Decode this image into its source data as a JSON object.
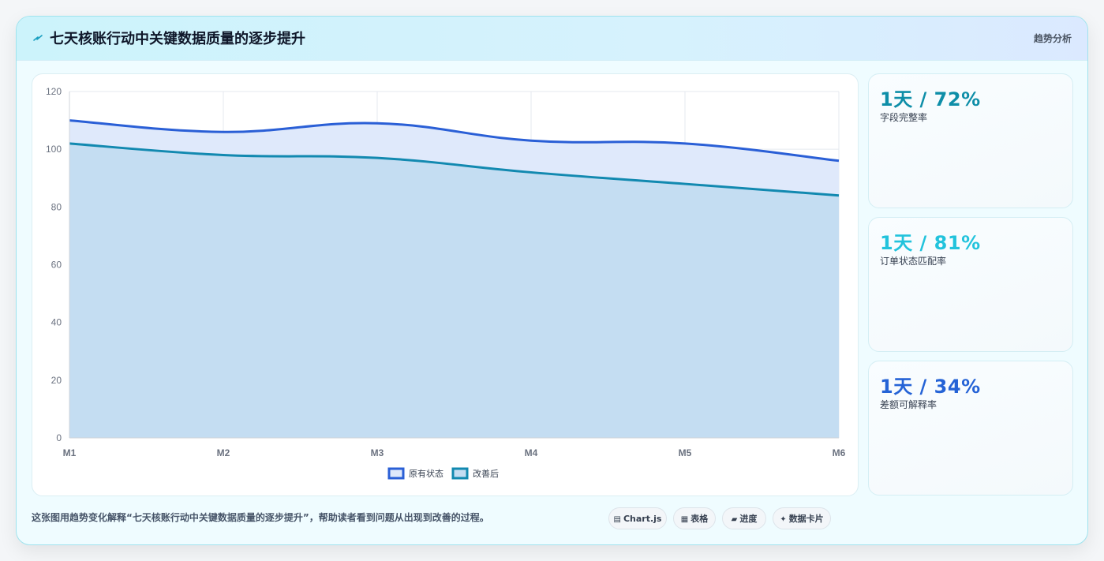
{
  "header": {
    "title": "七天核账行动中关键数据质量的逐步提升",
    "tag": "趋势分析",
    "icon": "lightning-icon"
  },
  "stats": [
    {
      "value": "1天 / 72%",
      "label": "字段完整率",
      "color": "#0e8ea8"
    },
    {
      "value": "1天 / 81%",
      "label": "订单状态匹配率",
      "color": "#22c3dc"
    },
    {
      "value": "1天 / 34%",
      "label": "差额可解释率",
      "color": "#2563d6"
    }
  ],
  "footer": {
    "caption": "这张图用趋势变化解释“七天核账行动中关键数据质量的逐步提升”，帮助读者看到问题从出现到改善的过程。",
    "chips": [
      {
        "icon": "chart-icon",
        "glyph": "▤",
        "label": "Chart.js"
      },
      {
        "icon": "table-icon",
        "glyph": "▦",
        "label": "表格"
      },
      {
        "icon": "progress-icon",
        "glyph": "▰",
        "label": "进度"
      },
      {
        "icon": "card-icon",
        "glyph": "✦",
        "label": "数据卡片"
      }
    ]
  },
  "chart_data": {
    "type": "area",
    "categories": [
      "M1",
      "M2",
      "M3",
      "M4",
      "M5",
      "M6"
    ],
    "ylim": [
      0,
      120
    ],
    "yticks": [
      0,
      20,
      40,
      60,
      80,
      100,
      120
    ],
    "grid": true,
    "legend_position": "bottom",
    "series": [
      {
        "name": "原有状态",
        "values": [
          110,
          106,
          109,
          103,
          102,
          96
        ],
        "color": "#2a5fd6",
        "fill": "#dfe9fb"
      },
      {
        "name": "改善后",
        "values": [
          102,
          98,
          97,
          92,
          88,
          84
        ],
        "color": "#1289b0",
        "fill": "#c4ddf2"
      }
    ]
  }
}
